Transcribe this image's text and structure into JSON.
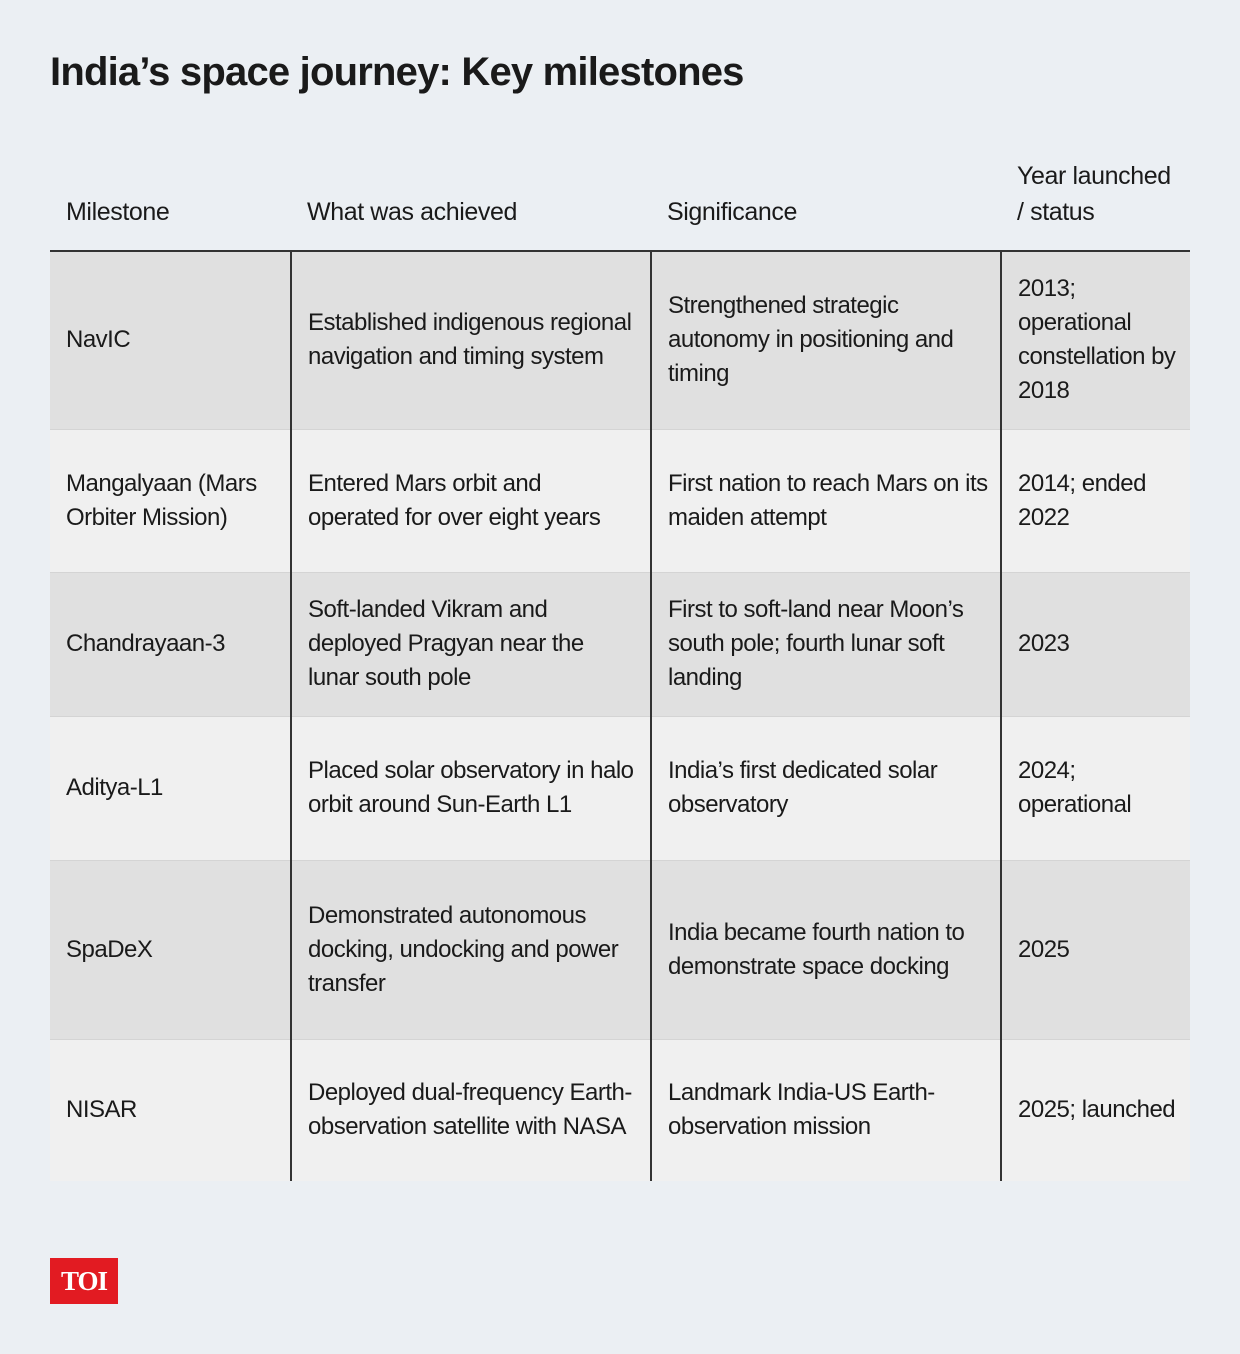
{
  "header": {
    "title": "India’s space journey: Key milestones"
  },
  "table": {
    "columns": [
      "Milestone",
      "What was achieved",
      "Significance",
      "Year launched / status"
    ],
    "rows": [
      [
        "NavIC",
        "Established indigenous regional navigation and timing system",
        "Strengthened strategic autonomy in positioning and timing",
        "2013; operational constellation by 2018"
      ],
      [
        "Mangalyaan (Mars Orbiter Mission)",
        "Entered Mars orbit and operated for over eight years",
        "First nation to reach Mars on its maiden attempt",
        "2014; ended 2022"
      ],
      [
        "Chandrayaan-3",
        "Soft-landed Vikram and deployed Pragyan near the lunar south pole",
        "First to soft-land near Moon’s south pole; fourth lunar soft landing",
        "2023"
      ],
      [
        "Aditya-L1",
        "Placed solar observatory in halo orbit around Sun-Earth L1",
        "India’s first dedicated solar observatory",
        "2024; operational"
      ],
      [
        "SpaDeX",
        "Demonstrated autonomous docking, undocking and power transfer",
        "India became fourth nation to demonstrate space docking",
        "2025"
      ],
      [
        "NISAR",
        "Deployed dual-frequency Earth-observation satellite with NASA",
        "Landmark India-US Earth-observation mission",
        "2025; launched"
      ]
    ]
  },
  "footer": {
    "logo": "TOI"
  }
}
